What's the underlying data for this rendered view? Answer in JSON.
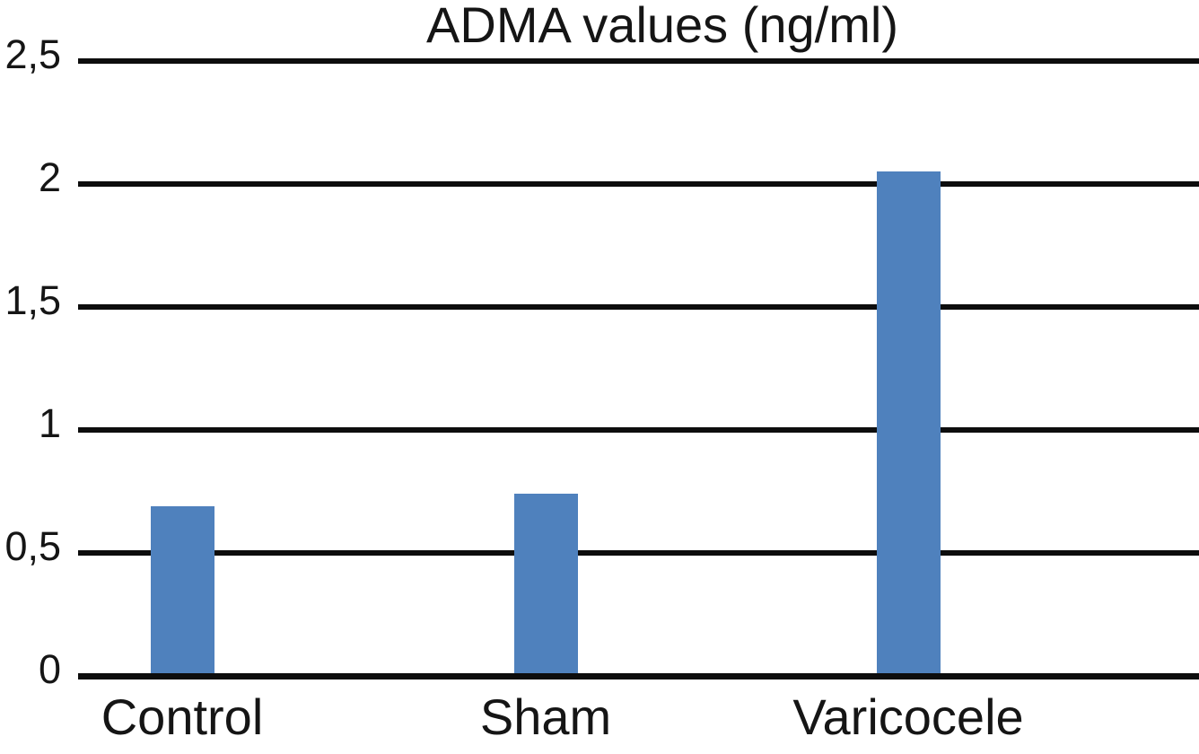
{
  "chart_data": {
    "type": "bar",
    "title": "ADMA values (ng/ml)",
    "categories": [
      "Control",
      "Sham",
      "Varicocele"
    ],
    "values": [
      0.69,
      0.74,
      2.05
    ],
    "xlabel": "",
    "ylabel": "",
    "ylim": [
      0,
      2.5
    ],
    "ytick_values": [
      0,
      0.5,
      1,
      1.5,
      2,
      2.5
    ],
    "ytick_labels": [
      "0",
      "0,5",
      "1",
      "1,5",
      "2",
      "2,5"
    ],
    "decimal_separator": ",",
    "grid": "horizontal",
    "legend": "none",
    "bar_color": "#4f81bd",
    "axis_color": "#0d0d0d",
    "text_color": "#151515",
    "background_color": "#ffffff"
  }
}
